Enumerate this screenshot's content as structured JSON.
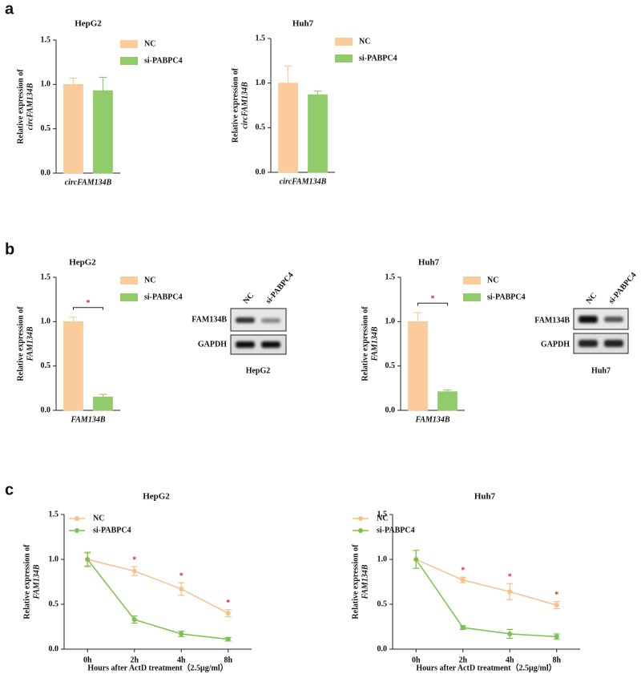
{
  "panels": [
    "a",
    "b",
    "c"
  ],
  "chart_data": [
    {
      "type": "bar",
      "title": "HepG2",
      "ylabel": [
        "Relative expression of",
        "circFAM134B"
      ],
      "categories": [
        "circFAM134B"
      ],
      "series": [
        {
          "name": "NC",
          "color": "#fbcb9c",
          "values": [
            1.0
          ],
          "errors": [
            0.07
          ]
        },
        {
          "name": "si-PABPC4",
          "color": "#92cc6a",
          "values": [
            0.93
          ],
          "errors": [
            0.15
          ]
        }
      ],
      "ylim": [
        0,
        1.5
      ],
      "yticks": [
        {
          "value": 0,
          "label": "0.0"
        },
        0.5,
        {
          "value": 1,
          "label": "1.0"
        },
        1.5
      ]
    },
    {
      "type": "bar",
      "title": "Huh7",
      "ylabel": [
        "Relative expression of",
        "circFAM134B"
      ],
      "categories": [
        "circFAM134B"
      ],
      "series": [
        {
          "name": "NC",
          "color": "#fbcb9c",
          "values": [
            1.0
          ],
          "errors": [
            0.19
          ]
        },
        {
          "name": "si-PABPC4",
          "color": "#92cc6a",
          "values": [
            0.87
          ],
          "errors": [
            0.04
          ]
        }
      ],
      "ylim": [
        0,
        1.5
      ],
      "yticks": [
        {
          "value": 0,
          "label": "0.0"
        },
        0.5,
        {
          "value": 1,
          "label": "1.0"
        },
        1.5
      ]
    },
    {
      "type": "bar",
      "title": "HepG2",
      "ylabel": [
        "Relative expression of",
        "FAM134B"
      ],
      "categories": [
        "FAM134B"
      ],
      "series": [
        {
          "name": "NC",
          "color": "#fbcb9c",
          "values": [
            1.0
          ],
          "errors": [
            0.05
          ]
        },
        {
          "name": "si-PABPC4",
          "color": "#92cc6a",
          "values": [
            0.15
          ],
          "errors": [
            0.03
          ]
        }
      ],
      "annotations": [
        "*"
      ],
      "ylim": [
        0,
        1.5
      ],
      "yticks": [
        {
          "value": 0,
          "label": "0.0"
        },
        0.5,
        {
          "value": 1,
          "label": "1.0"
        },
        1.5
      ]
    },
    {
      "type": "bar",
      "title": "Huh7",
      "ylabel": [
        "Relative expression of",
        "FAM134B"
      ],
      "categories": [
        "FAM134B"
      ],
      "series": [
        {
          "name": "NC",
          "color": "#fbcb9c",
          "values": [
            1.0
          ],
          "errors": [
            0.1
          ]
        },
        {
          "name": "si-PABPC4",
          "color": "#92cc6a",
          "values": [
            0.21
          ],
          "errors": [
            0.02
          ]
        }
      ],
      "annotations": [
        "*"
      ],
      "ylim": [
        0,
        1.5
      ],
      "yticks": [
        {
          "value": 0,
          "label": "0.0"
        },
        0.5,
        {
          "value": 1,
          "label": "1.0"
        },
        1.5
      ]
    },
    {
      "type": "line",
      "title": "HepG2",
      "ylabel": [
        "Relative expression of",
        "FAM134B"
      ],
      "xlabel": "Hours after ActD treatment（2.5μg/ml）",
      "categories": [
        "0h",
        "2h",
        "4h",
        "8h"
      ],
      "series": [
        {
          "name": "NC",
          "color": "#f7c08a",
          "values": [
            1.0,
            0.87,
            0.67,
            0.4
          ],
          "errors": [
            0.07,
            0.05,
            0.07,
            0.04
          ]
        },
        {
          "name": "si-PABPC4",
          "color": "#7cc24a",
          "values": [
            1.0,
            0.33,
            0.17,
            0.11
          ],
          "errors": [
            0.08,
            0.04,
            0.03,
            0.02
          ]
        }
      ],
      "annotations": [
        null,
        "*",
        "*",
        "*"
      ],
      "ylim": [
        0,
        1.5
      ],
      "yticks": [
        {
          "value": 0,
          "label": "0.0"
        },
        0.5,
        {
          "value": 1,
          "label": "1.0"
        },
        1.5
      ]
    },
    {
      "type": "line",
      "title": "Huh7",
      "ylabel": [
        "Relative expression of",
        "FAM134B"
      ],
      "xlabel": "Hours after ActD treatment（2.5μg/ml）",
      "categories": [
        "0h",
        "2h",
        "4h",
        "8h"
      ],
      "series": [
        {
          "name": "NC",
          "color": "#f7c08a",
          "values": [
            1.0,
            0.77,
            0.64,
            0.49
          ],
          "errors": [
            0.1,
            0.03,
            0.09,
            0.04
          ]
        },
        {
          "name": "si-PABPC4",
          "color": "#7cc24a",
          "values": [
            1.0,
            0.24,
            0.17,
            0.14
          ],
          "errors": [
            0.1,
            0.02,
            0.05,
            0.03
          ]
        }
      ],
      "annotations": [
        null,
        "*",
        "*",
        "*"
      ],
      "ylim": [
        0,
        1.5
      ],
      "yticks": [
        {
          "value": 0,
          "label": "0.0"
        },
        0.5,
        {
          "value": 1,
          "label": "1.0"
        },
        1.5
      ]
    }
  ],
  "blots": [
    {
      "lanes": [
        "NC",
        "si-PABPC4"
      ],
      "rows": [
        "FAM134B",
        "GAPDH"
      ],
      "caption": "HepG2"
    },
    {
      "lanes": [
        "NC",
        "si-PABPC4"
      ],
      "rows": [
        "FAM134B",
        "GAPDH"
      ],
      "caption": "Huh7"
    }
  ]
}
